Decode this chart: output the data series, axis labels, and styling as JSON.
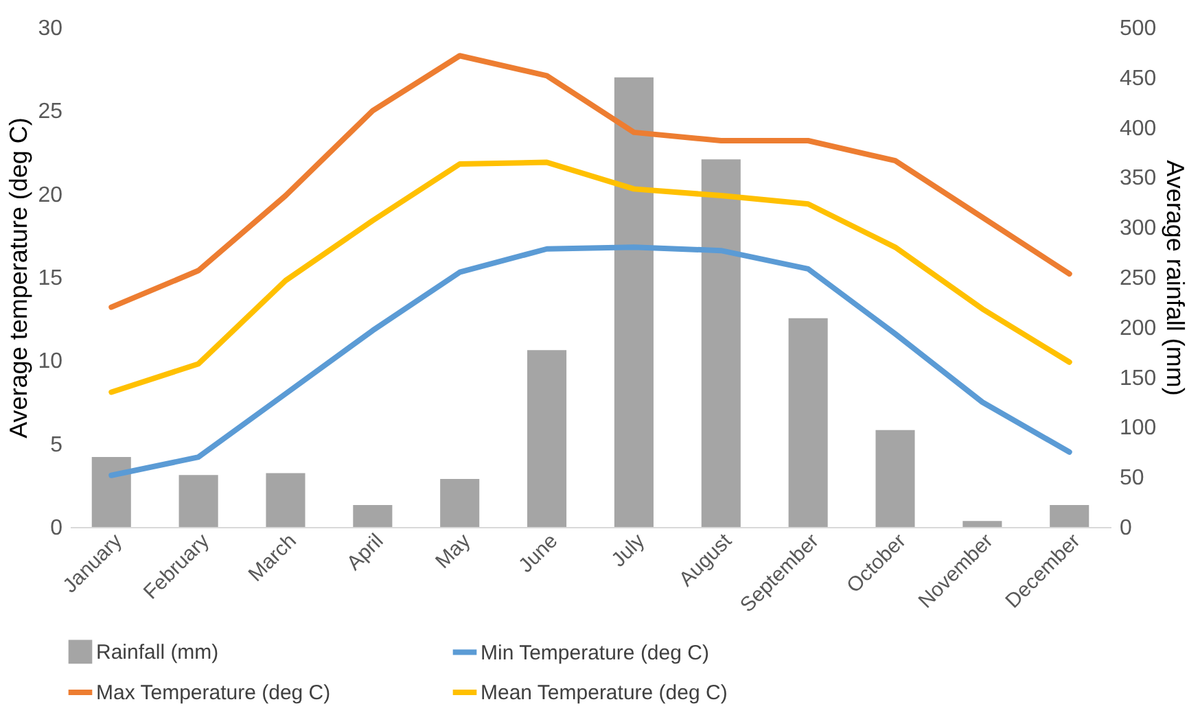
{
  "chart_data": {
    "type": "line",
    "categories": [
      "January",
      "February",
      "March",
      "April",
      "May",
      "June",
      "July",
      "August",
      "September",
      "October",
      "November",
      "December"
    ],
    "ylabel": "Average temperature (deg C)",
    "y2label": "Average rainfall (mm)",
    "ylim": [
      0,
      30
    ],
    "yticks": [
      0,
      5,
      10,
      15,
      20,
      25,
      30
    ],
    "y2lim": [
      0,
      500
    ],
    "y2ticks": [
      0,
      50,
      100,
      150,
      200,
      250,
      300,
      350,
      400,
      450,
      500
    ],
    "legend": "bottom",
    "grid": false,
    "series": [
      {
        "name": "Rainfall (mm)",
        "type": "bar",
        "axis": "y2",
        "color": "#a5a5a5",
        "values": [
          70,
          52,
          54,
          22,
          48,
          177,
          450,
          368,
          209,
          97,
          6,
          22
        ]
      },
      {
        "name": "Min Temperature (deg C)",
        "color": "#5b9bd5",
        "values": [
          3.1,
          4.2,
          8.0,
          11.8,
          15.3,
          16.7,
          16.8,
          16.6,
          15.5,
          11.6,
          7.5,
          4.5
        ]
      },
      {
        "name": "Max Temperature (deg C)",
        "color": "#ed7d31",
        "values": [
          13.2,
          15.4,
          19.9,
          25.0,
          28.3,
          27.1,
          23.7,
          23.2,
          23.2,
          22.0,
          18.6,
          15.2
        ]
      },
      {
        "name": "Mean Temperature (deg C)",
        "color": "#ffc000",
        "values": [
          8.1,
          9.8,
          14.8,
          18.4,
          21.8,
          21.9,
          20.3,
          19.9,
          19.4,
          16.8,
          13.1,
          9.9
        ]
      }
    ]
  }
}
